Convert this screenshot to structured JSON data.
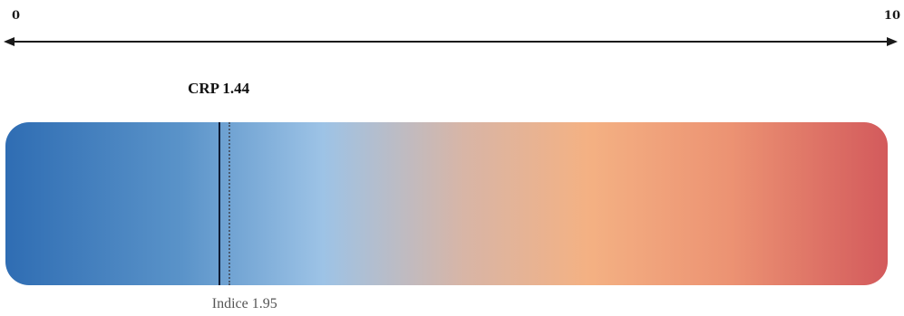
{
  "scale": {
    "min_label": "0",
    "max_label": "10",
    "min": 0,
    "max": 10
  },
  "markers": {
    "crp": {
      "label": "CRP 1.44",
      "value": 1.44
    },
    "index": {
      "label": "Indice 1.95",
      "value": 1.95
    }
  },
  "colors": {
    "low": "#2f6db3",
    "mid": "#9dc3e6",
    "high_mid": "#f4b183",
    "high": "#d35a5c",
    "crp_line": "#0e1a33",
    "index_line": "#4a5a70"
  }
}
